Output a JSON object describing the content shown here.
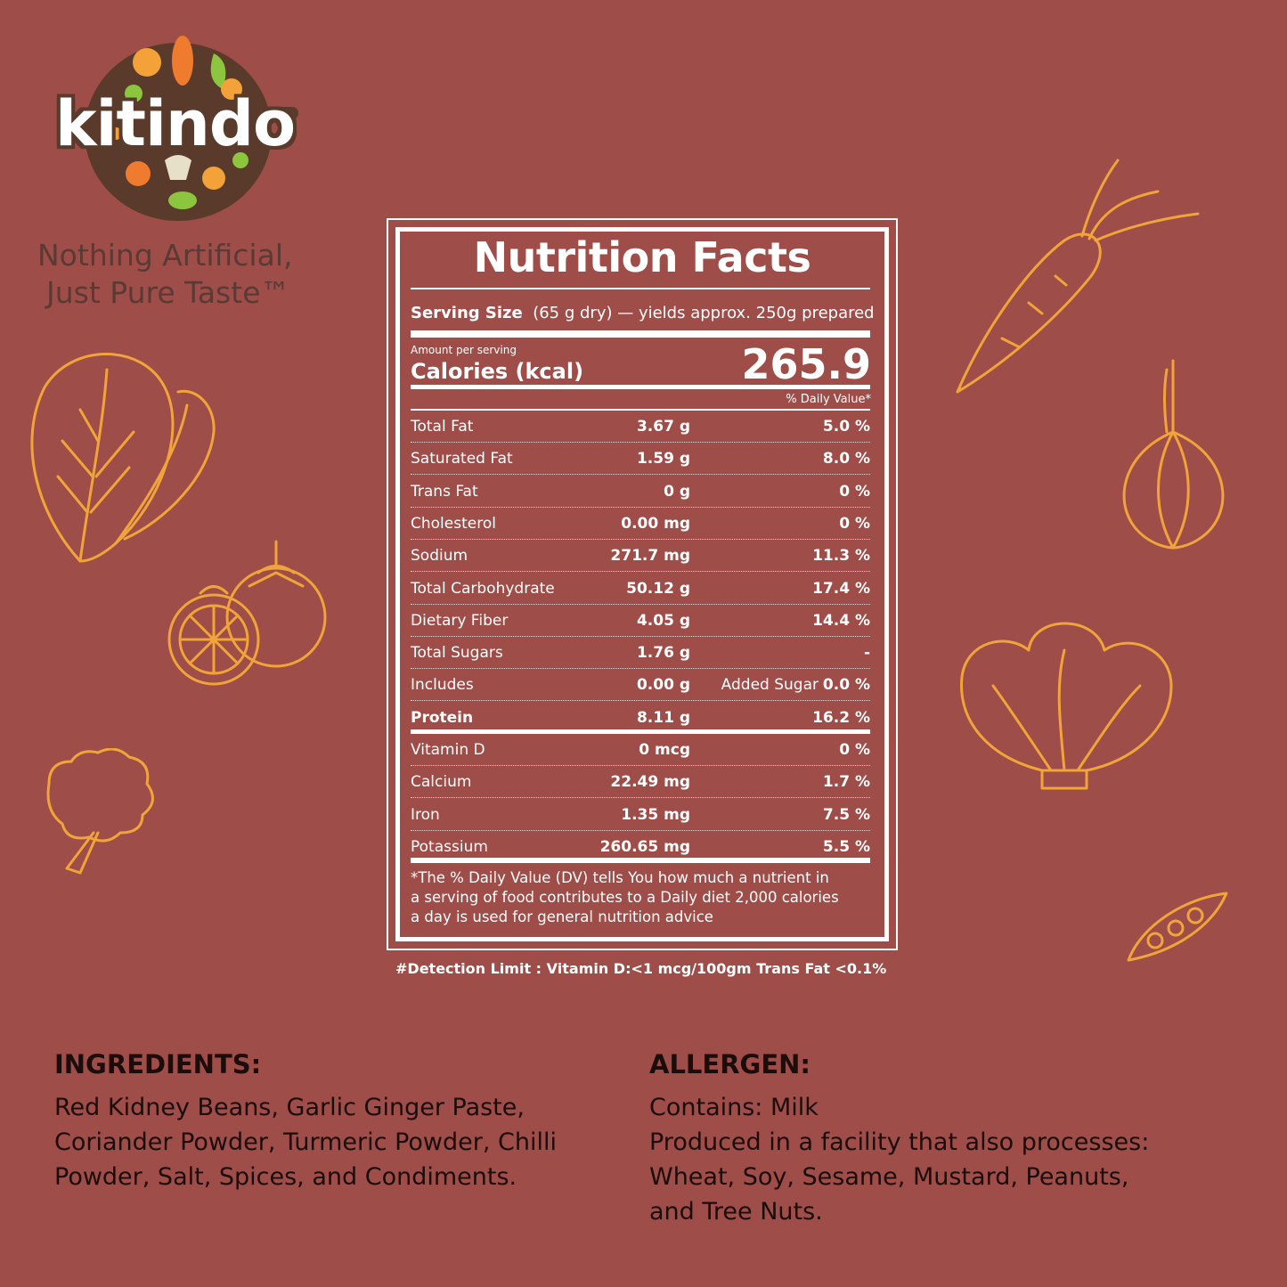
{
  "brand": {
    "name": "kitindo",
    "tagline_line1": "Nothing Artificial,",
    "tagline_line2": "Just Pure Taste™"
  },
  "colors": {
    "background": "#9e4d48",
    "accent": "#f0a43a",
    "text_dark": "#1a0d0c"
  },
  "icons": [
    "spinach-icon",
    "tomato-icon",
    "broccoli-icon",
    "carrot-icon",
    "onion-icon",
    "lettuce-icon",
    "peapod-icon"
  ],
  "nutrition": {
    "title": "Nutrition Facts",
    "serving_label": "Serving Size",
    "serving_value": "(65 g dry) — yields approx. 250g prepared",
    "amount_per_serving": "Amount per serving",
    "calories_label": "Calories (kcal)",
    "calories_value": "265.9",
    "dv_header": "% Daily Value*",
    "rows": [
      {
        "name": "Total Fat",
        "amount": "3.67 g",
        "dv": "5.0 %"
      },
      {
        "name": "Saturated Fat",
        "amount": "1.59 g",
        "dv": "8.0 %"
      },
      {
        "name": "Trans Fat",
        "amount": "0 g",
        "dv": "0 %"
      },
      {
        "name": "Cholesterol",
        "amount": "0.00 mg",
        "dv": "0 %"
      },
      {
        "name": "Sodium",
        "amount": "271.7 mg",
        "dv": "11.3 %"
      },
      {
        "name": "Total Carbohydrate",
        "amount": "50.12 g",
        "dv": "17.4 %"
      },
      {
        "name": "Dietary Fiber",
        "amount": "4.05 g",
        "dv": "14.4 %"
      },
      {
        "name": "Total Sugars",
        "amount": "1.76 g",
        "dv": "-"
      },
      {
        "name": "Includes",
        "amount": "0.00 g",
        "extra": "Added Sugar",
        "dv": "0.0 %"
      },
      {
        "name": "Protein",
        "amount": "8.11 g",
        "dv": "16.2 %"
      },
      {
        "name": "Vitamin D",
        "amount": "0 mcg",
        "dv": "0 %"
      },
      {
        "name": "Calcium",
        "amount": "22.49 mg",
        "dv": "1.7 %"
      },
      {
        "name": "Iron",
        "amount": "1.35 mg",
        "dv": "7.5 %"
      },
      {
        "name": "Potassium",
        "amount": "260.65 mg",
        "dv": "5.5 %"
      }
    ],
    "footnote_line1": "*The % Daily Value (DV) tells You how much a nutrient in",
    "footnote_line2": "a serving of food contributes to a Daily diet 2,000 calories",
    "footnote_line3": "a day is used for general nutrition advice",
    "detection_limit": "#Detection Limit : Vitamin D:<1 mcg/100gm Trans Fat <0.1%"
  },
  "ingredients": {
    "heading": "INGREDIENTS:",
    "line1": "Red Kidney Beans, Garlic Ginger Paste,",
    "line2": "Coriander Powder, Turmeric Powder, Chilli",
    "line3": "Powder, Salt, Spices, and Condiments."
  },
  "allergen": {
    "heading": "ALLERGEN:",
    "line1": "Contains: Milk",
    "line2": "Produced in a facility that also processes:",
    "line3": "Wheat, Soy, Sesame, Mustard, Peanuts,",
    "line4": "and Tree Nuts."
  }
}
